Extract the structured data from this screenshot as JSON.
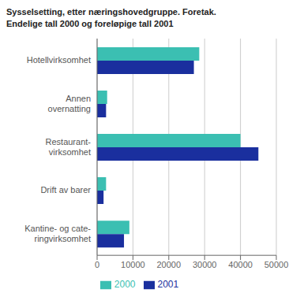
{
  "chart_data": {
    "type": "bar",
    "orientation": "horizontal",
    "title": "Sysselsetting, etter næringshovedgruppe. Foretak.",
    "subtitle": "Endelige tall 2000 og foreløpige tall 2001",
    "categories": [
      "Hotellvirksomhet",
      "Annen\novernatting",
      "Restaurant-\nvirksomhet",
      "Drift av barer",
      "Kantine- og cate-\nringvirksomhet"
    ],
    "series": [
      {
        "name": "2000",
        "color": "#3bbfb2",
        "values": [
          28500,
          2800,
          40000,
          2500,
          9000
        ]
      },
      {
        "name": "2001",
        "color": "#1a2f9e",
        "values": [
          27000,
          2500,
          45000,
          1800,
          7500
        ]
      }
    ],
    "xlim": [
      0,
      50000
    ],
    "xticks": [
      0,
      10000,
      20000,
      30000,
      40000,
      50000
    ],
    "grid": true,
    "legend": "bottom"
  }
}
